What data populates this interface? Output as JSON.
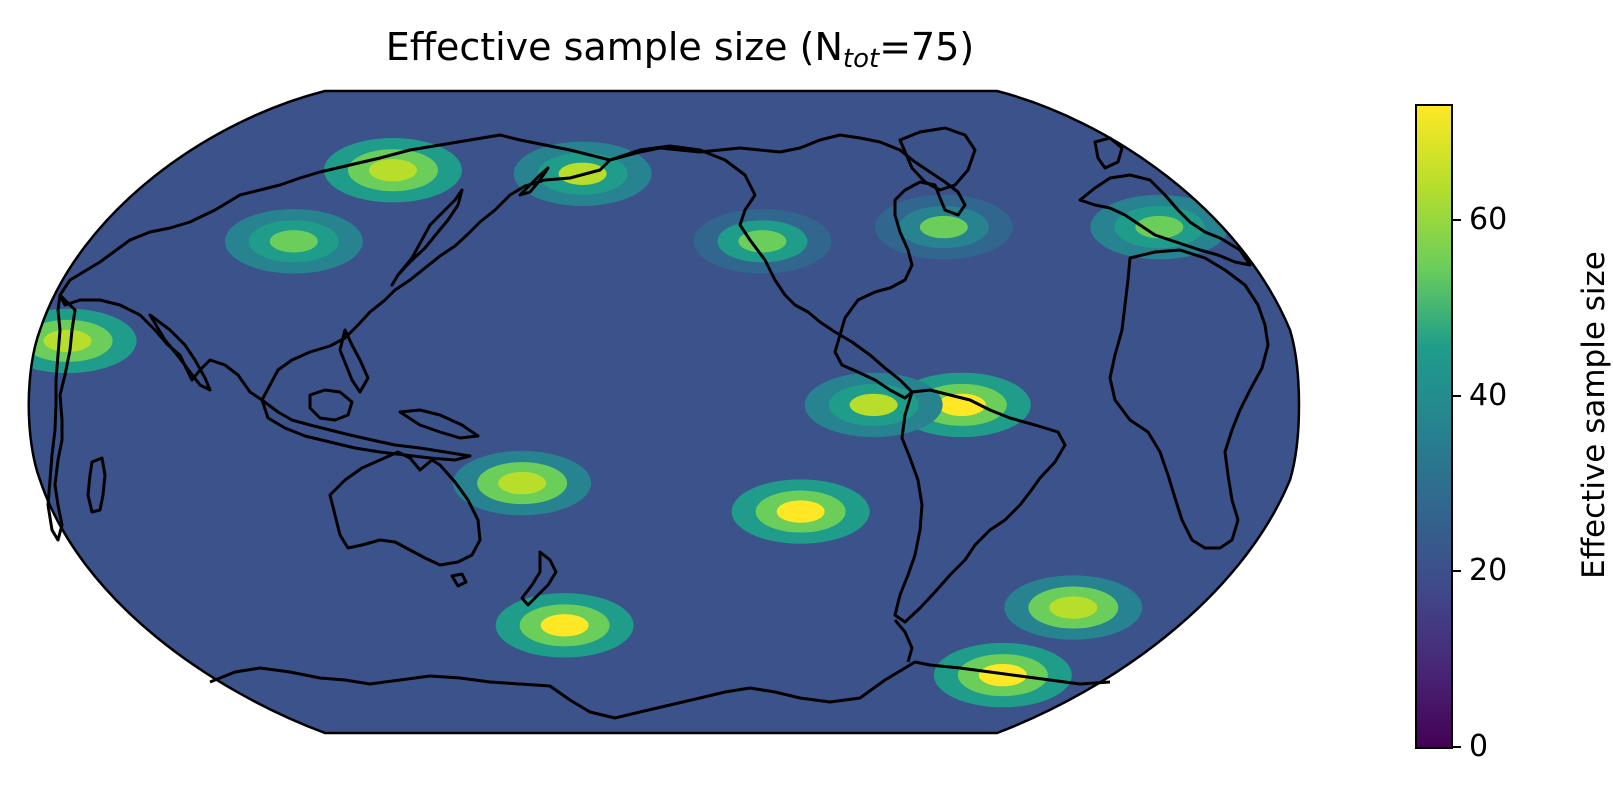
{
  "title": {
    "main": "Effective sample size (N",
    "subscript": "tot",
    "suffix": "=75)"
  },
  "map": {
    "projection": "Robinson",
    "central_longitude": 180,
    "field": "effective sample size",
    "colormap": "viridis",
    "vmin": 0,
    "vmax": 72,
    "features": "coastlines",
    "hotspots_lon_lat": [
      [
        -95,
        2,
        70
      ],
      [
        -120,
        2,
        60
      ],
      [
        -140,
        -28,
        68
      ],
      [
        150,
        -60,
        70
      ],
      [
        -55,
        -55,
        62
      ],
      [
        -70,
        -74,
        68
      ],
      [
        -30,
        52,
        58
      ],
      [
        -150,
        48,
        55
      ],
      [
        95,
        68,
        66
      ],
      [
        155,
        67,
        60
      ],
      [
        10,
        20,
        66
      ],
      [
        140,
        -20,
        62
      ],
      [
        -95,
        52,
        52
      ],
      [
        70,
        48,
        58
      ]
    ]
  },
  "colorbar": {
    "label": "Effective sample size",
    "ticks": [
      "0",
      "20",
      "40",
      "60"
    ],
    "tick_values": [
      0,
      20,
      40,
      60
    ],
    "range": [
      0,
      73
    ],
    "colors": [
      "#440154",
      "#482777",
      "#3f4a8a",
      "#31678e",
      "#26838f",
      "#1f9d8a",
      "#6cce5a",
      "#b6de2b",
      "#fee825"
    ]
  }
}
